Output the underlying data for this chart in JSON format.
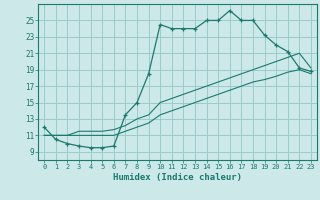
{
  "title": "",
  "xlabel": "Humidex (Indice chaleur)",
  "bg_color": "#cce8e8",
  "grid_color": "#99cccc",
  "line_color": "#1a7a6e",
  "xlim": [
    -0.5,
    23.5
  ],
  "ylim": [
    8.0,
    27.0
  ],
  "xticks": [
    0,
    1,
    2,
    3,
    4,
    5,
    6,
    7,
    8,
    9,
    10,
    11,
    12,
    13,
    14,
    15,
    16,
    17,
    18,
    19,
    20,
    21,
    22,
    23
  ],
  "yticks": [
    9,
    11,
    13,
    15,
    17,
    19,
    21,
    23,
    25
  ],
  "curve1_x": [
    0,
    1,
    2,
    3,
    4,
    5,
    6,
    7,
    8,
    9,
    10,
    11,
    12,
    13,
    14,
    15,
    16,
    17,
    18,
    19,
    20,
    21,
    22,
    23
  ],
  "curve1_y": [
    12,
    10.5,
    10,
    9.7,
    9.5,
    9.5,
    9.7,
    13.5,
    15,
    18.5,
    24.5,
    24,
    24,
    24,
    25,
    25,
    26.2,
    25,
    25,
    23.2,
    22,
    21.2,
    19.2,
    18.8
  ],
  "curve2_x": [
    0,
    1,
    2,
    3,
    4,
    5,
    6,
    7,
    8,
    9,
    10,
    11,
    12,
    13,
    14,
    15,
    16,
    17,
    18,
    19,
    20,
    21,
    22,
    23
  ],
  "curve2_y": [
    11,
    11,
    11,
    11,
    11,
    11,
    11,
    11.5,
    12,
    12.5,
    13.5,
    14,
    14.5,
    15,
    15.5,
    16,
    16.5,
    17,
    17.5,
    17.8,
    18.2,
    18.7,
    19.0,
    18.5
  ],
  "curve3_x": [
    0,
    1,
    2,
    3,
    4,
    5,
    6,
    7,
    8,
    9,
    10,
    11,
    12,
    13,
    14,
    15,
    16,
    17,
    18,
    19,
    20,
    21,
    22,
    23
  ],
  "curve3_y": [
    11,
    11,
    11,
    11.5,
    11.5,
    11.5,
    11.7,
    12.2,
    13,
    13.5,
    15,
    15.5,
    16,
    16.5,
    17,
    17.5,
    18,
    18.5,
    19,
    19.5,
    20,
    20.5,
    21,
    19.2
  ]
}
